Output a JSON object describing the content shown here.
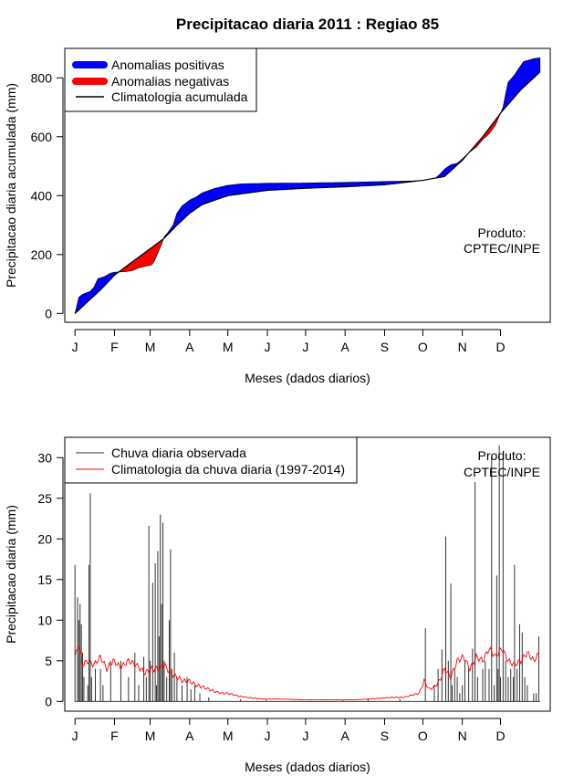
{
  "title": "Precipitacao diaria 2011 : Regiao 85",
  "chart_data": [
    {
      "type": "area",
      "name": "accumulated",
      "ylabel": "Precipitacao diaria acumulada (mm)",
      "xlabel": "Meses (dados diarios)",
      "months": [
        "J",
        "F",
        "M",
        "A",
        "M",
        "J",
        "J",
        "A",
        "S",
        "O",
        "N",
        "D"
      ],
      "yticks": [
        0,
        200,
        400,
        600,
        800
      ],
      "ylim": [
        -30,
        900
      ],
      "xlim": [
        -8,
        373
      ],
      "legend": [
        "Anomalias positivas",
        "Anomalias negativas",
        "Climatologia acumulada"
      ],
      "annotation": [
        "Produto:",
        "CPTEC/INPE"
      ],
      "colors": {
        "positive": "#0000ff",
        "negative": "#ff0000",
        "climatology": "#000000"
      },
      "climatology_points": [
        [
          0,
          0
        ],
        [
          10,
          40
        ],
        [
          20,
          80
        ],
        [
          31,
          130
        ],
        [
          45,
          175
        ],
        [
          59,
          220
        ],
        [
          70,
          255
        ],
        [
          80,
          300
        ],
        [
          90,
          340
        ],
        [
          100,
          370
        ],
        [
          120,
          400
        ],
        [
          151,
          418
        ],
        [
          181,
          425
        ],
        [
          212,
          430
        ],
        [
          243,
          437
        ],
        [
          273,
          452
        ],
        [
          290,
          465
        ],
        [
          304,
          520
        ],
        [
          320,
          600
        ],
        [
          334,
          680
        ],
        [
          350,
          760
        ],
        [
          365,
          820
        ]
      ],
      "observed_points": [
        [
          0,
          0
        ],
        [
          3,
          55
        ],
        [
          6,
          65
        ],
        [
          9,
          70
        ],
        [
          12,
          75
        ],
        [
          15,
          90
        ],
        [
          18,
          118
        ],
        [
          23,
          125
        ],
        [
          28,
          137
        ],
        [
          31,
          140
        ],
        [
          40,
          142
        ],
        [
          45,
          145
        ],
        [
          50,
          155
        ],
        [
          55,
          160
        ],
        [
          60,
          165
        ],
        [
          62,
          175
        ],
        [
          64,
          195
        ],
        [
          66,
          215
        ],
        [
          68,
          235
        ],
        [
          70,
          260
        ],
        [
          73,
          275
        ],
        [
          77,
          300
        ],
        [
          80,
          340
        ],
        [
          84,
          365
        ],
        [
          88,
          378
        ],
        [
          90,
          385
        ],
        [
          95,
          395
        ],
        [
          100,
          410
        ],
        [
          110,
          425
        ],
        [
          120,
          435
        ],
        [
          130,
          440
        ],
        [
          151,
          442
        ],
        [
          181,
          443
        ],
        [
          212,
          445
        ],
        [
          243,
          448
        ],
        [
          265,
          450
        ],
        [
          273,
          452
        ],
        [
          283,
          460
        ],
        [
          287,
          475
        ],
        [
          290,
          490
        ],
        [
          295,
          505
        ],
        [
          300,
          510
        ],
        [
          304,
          525
        ],
        [
          309,
          545
        ],
        [
          315,
          565
        ],
        [
          320,
          590
        ],
        [
          325,
          610
        ],
        [
          330,
          640
        ],
        [
          334,
          680
        ],
        [
          336,
          700
        ],
        [
          338,
          745
        ],
        [
          340,
          785
        ],
        [
          345,
          810
        ],
        [
          348,
          830
        ],
        [
          352,
          855
        ],
        [
          360,
          865
        ],
        [
          365,
          868
        ]
      ]
    },
    {
      "type": "bar",
      "name": "daily",
      "ylabel": "Precipitacao diaria (mm)",
      "xlabel": "Meses (dados diarios)",
      "months": [
        "J",
        "F",
        "M",
        "A",
        "M",
        "J",
        "J",
        "A",
        "S",
        "O",
        "N",
        "D"
      ],
      "yticks": [
        0,
        5,
        10,
        15,
        20,
        25,
        30
      ],
      "ylim": [
        -1.2,
        32.5
      ],
      "xlim": [
        -8,
        373
      ],
      "legend": [
        "Chuva diaria observada",
        "Climatologia da chuva diaria (1997-2014)"
      ],
      "annotation": [
        "Produto:",
        "CPTEC/INPE"
      ],
      "colors": {
        "observed": "#333333",
        "climatology": "#ff0000"
      },
      "observed_peaks": [
        [
          0,
          16.8
        ],
        [
          2,
          12.8
        ],
        [
          3,
          10
        ],
        [
          4,
          12
        ],
        [
          5,
          9.5
        ],
        [
          6,
          6
        ],
        [
          7,
          3
        ],
        [
          10,
          2
        ],
        [
          11,
          16.8
        ],
        [
          12,
          25.6
        ],
        [
          13,
          3
        ],
        [
          16,
          4
        ],
        [
          20,
          4
        ],
        [
          22,
          2
        ],
        [
          28,
          5
        ],
        [
          36,
          5
        ],
        [
          42,
          3
        ],
        [
          47,
          6
        ],
        [
          50,
          2
        ],
        [
          54,
          5.5
        ],
        [
          56,
          3
        ],
        [
          58,
          21.6
        ],
        [
          59,
          5
        ],
        [
          61,
          14.6
        ],
        [
          63,
          17
        ],
        [
          64,
          2
        ],
        [
          65,
          18.5
        ],
        [
          66,
          8
        ],
        [
          67,
          23
        ],
        [
          68,
          12
        ],
        [
          69,
          22
        ],
        [
          70,
          5
        ],
        [
          72,
          3
        ],
        [
          74,
          10
        ],
        [
          75,
          18.7
        ],
        [
          76,
          4
        ],
        [
          78,
          6
        ],
        [
          80,
          3
        ],
        [
          84,
          2
        ],
        [
          88,
          3
        ],
        [
          91,
          1.5
        ],
        [
          94,
          2
        ],
        [
          98,
          1
        ],
        [
          105,
          0.5
        ],
        [
          130,
          0.3
        ],
        [
          150,
          0.2
        ],
        [
          210,
          0.2
        ],
        [
          230,
          0.3
        ],
        [
          255,
          0.3
        ],
        [
          275,
          9
        ],
        [
          282,
          2
        ],
        [
          285,
          4
        ],
        [
          288,
          6.4
        ],
        [
          291,
          20.3
        ],
        [
          293,
          5
        ],
        [
          295,
          14.5
        ],
        [
          296,
          2
        ],
        [
          298,
          4
        ],
        [
          300,
          3
        ],
        [
          302,
          1
        ],
        [
          304,
          2
        ],
        [
          306,
          5
        ],
        [
          309,
          4
        ],
        [
          312,
          6.5
        ],
        [
          314,
          27
        ],
        [
          316,
          3
        ],
        [
          320,
          4
        ],
        [
          322,
          5
        ],
        [
          325,
          4
        ],
        [
          327,
          30
        ],
        [
          329,
          2
        ],
        [
          331,
          15.5
        ],
        [
          332,
          4
        ],
        [
          333,
          31.5
        ],
        [
          334,
          3
        ],
        [
          336,
          30
        ],
        [
          338,
          5
        ],
        [
          340,
          3
        ],
        [
          342,
          4
        ],
        [
          344,
          3
        ],
        [
          345,
          16.8
        ],
        [
          347,
          4
        ],
        [
          349,
          9.5
        ],
        [
          351,
          8.5
        ],
        [
          353,
          3
        ],
        [
          355,
          2
        ],
        [
          360,
          1
        ],
        [
          362,
          1
        ],
        [
          364,
          8
        ]
      ],
      "climatology_points": [
        [
          0,
          5.5
        ],
        [
          3,
          7
        ],
        [
          6,
          4.5
        ],
        [
          10,
          5
        ],
        [
          15,
          4.5
        ],
        [
          20,
          5.5
        ],
        [
          25,
          4
        ],
        [
          30,
          5
        ],
        [
          36,
          4.2
        ],
        [
          42,
          5
        ],
        [
          48,
          4.5
        ],
        [
          55,
          3.5
        ],
        [
          60,
          4
        ],
        [
          65,
          4
        ],
        [
          70,
          4.5
        ],
        [
          75,
          3.5
        ],
        [
          80,
          3
        ],
        [
          85,
          2.5
        ],
        [
          90,
          2.5
        ],
        [
          95,
          2
        ],
        [
          100,
          1.8
        ],
        [
          105,
          1.5
        ],
        [
          110,
          1.2
        ],
        [
          115,
          1
        ],
        [
          120,
          1
        ],
        [
          125,
          0.8
        ],
        [
          130,
          0.6
        ],
        [
          135,
          0.5
        ],
        [
          140,
          0.4
        ],
        [
          150,
          0.3
        ],
        [
          160,
          0.3
        ],
        [
          170,
          0.25
        ],
        [
          180,
          0.2
        ],
        [
          190,
          0.2
        ],
        [
          200,
          0.2
        ],
        [
          210,
          0.2
        ],
        [
          220,
          0.2
        ],
        [
          230,
          0.3
        ],
        [
          240,
          0.4
        ],
        [
          250,
          0.5
        ],
        [
          258,
          0.5
        ],
        [
          265,
          0.8
        ],
        [
          270,
          1
        ],
        [
          274,
          2.5
        ],
        [
          278,
          1.5
        ],
        [
          282,
          1.8
        ],
        [
          286,
          2.5
        ],
        [
          290,
          4
        ],
        [
          295,
          3
        ],
        [
          300,
          5
        ],
        [
          305,
          5.5
        ],
        [
          310,
          4
        ],
        [
          315,
          5.5
        ],
        [
          320,
          5
        ],
        [
          325,
          6.5
        ],
        [
          330,
          5.5
        ],
        [
          335,
          6.5
        ],
        [
          340,
          5
        ],
        [
          345,
          4.5
        ],
        [
          350,
          5
        ],
        [
          355,
          6
        ],
        [
          360,
          5
        ],
        [
          364,
          5.8
        ]
      ]
    }
  ]
}
